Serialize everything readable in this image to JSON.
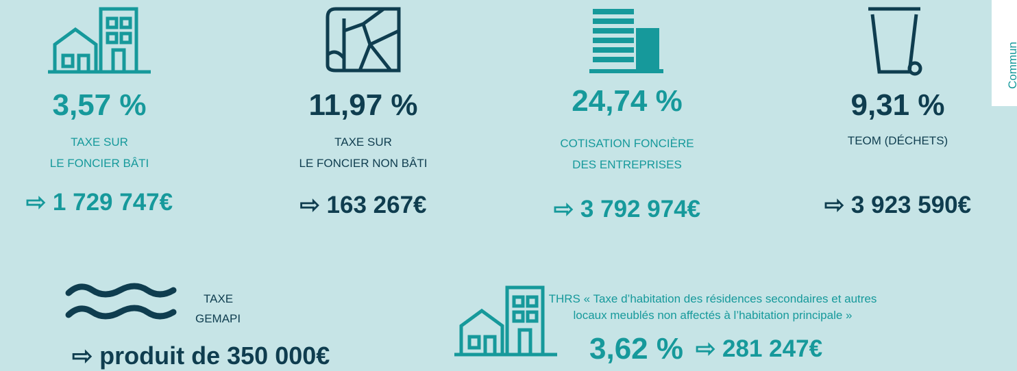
{
  "items": [
    {
      "rate": "3,57 %",
      "label_lines": [
        "TAXE SUR",
        "LE FONCIER BÂTI"
      ],
      "amount": "⇨ 1 729 747€"
    },
    {
      "rate": "11,97 %",
      "label_lines": [
        "TAXE SUR",
        "LE FONCIER NON BÂTI"
      ],
      "amount": "⇨ 163 267€"
    },
    {
      "rate": "24,74 %",
      "label_lines": [
        "COTISATION FONCIÈRE",
        "DES ENTREPRISES"
      ],
      "amount": "⇨ 3 792 974€"
    },
    {
      "rate": "9,31 %",
      "label_lines": [
        "TEOM (DÉCHETS)"
      ],
      "amount": "⇨ 3 923 590€"
    }
  ],
  "gemapi": {
    "label_lines": [
      "TAXE",
      "GEMAPI"
    ],
    "amount": "⇨ produit de 350 000€"
  },
  "thrs": {
    "label_lines": [
      "THRS « Taxe d’habitation des résidences secondaires et autres",
      "locaux meublés non affectés à l’habitation principale »"
    ],
    "rate": "3,62 %",
    "amount": "⇨ 281 247€"
  },
  "side_tab": "Commun"
}
